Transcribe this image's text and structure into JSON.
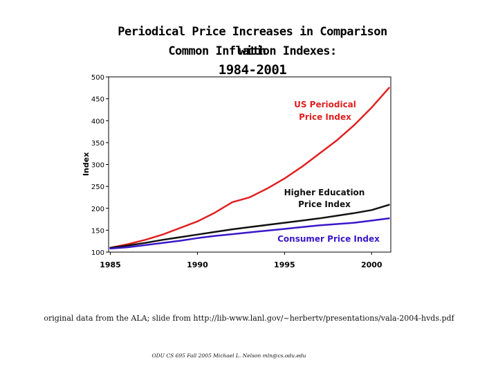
{
  "chart_data": {
    "type": "line",
    "title_lines": [
      "Periodical Price Increases in Comparison with",
      "Common Inflation Indexes:",
      "1984-2001"
    ],
    "xlabel": "",
    "ylabel": "Index",
    "xlim": [
      1984.9,
      2001.1
    ],
    "ylim": [
      100,
      500
    ],
    "yticks": [
      100,
      150,
      200,
      250,
      300,
      350,
      400,
      450,
      500
    ],
    "ytick_labels": [
      "100",
      "150",
      "200",
      "250",
      "300",
      "350",
      "400",
      "450",
      "500"
    ],
    "xticks": [
      1985,
      1990,
      1995,
      2000
    ],
    "xtick_labels": [
      "1985",
      "1990",
      "1995",
      "2000"
    ],
    "grid": false,
    "series": [
      {
        "name": "US Periodical Price Index",
        "label_lines": [
          "US Periodical",
          "Price Index"
        ],
        "color": "#e02020",
        "x": [
          1985,
          1986,
          1987,
          1988,
          1989,
          1990,
          1991,
          1992,
          1993,
          1994,
          1995,
          1996,
          1997,
          1998,
          1999,
          2000,
          2001
        ],
        "values": [
          110,
          118,
          128,
          140,
          155,
          170,
          190,
          214,
          225,
          245,
          268,
          295,
          325,
          355,
          390,
          430,
          475
        ]
      },
      {
        "name": "Higher Education Price Index",
        "label_lines": [
          "Higher Education",
          "Price Index"
        ],
        "color": "#111111",
        "x": [
          1985,
          1986,
          1987,
          1988,
          1989,
          1990,
          1991,
          1992,
          1993,
          1994,
          1995,
          1996,
          1997,
          1998,
          1999,
          2000,
          2001
        ],
        "values": [
          110,
          115,
          121,
          128,
          134,
          140,
          146,
          152,
          157,
          162,
          167,
          172,
          177,
          183,
          189,
          196,
          208
        ]
      },
      {
        "name": "Consumer Price Index",
        "label_lines": [
          "Consumer Price Index"
        ],
        "color": "#3a17c8",
        "x": [
          1985,
          1986,
          1987,
          1988,
          1989,
          1990,
          1991,
          1992,
          1993,
          1994,
          1995,
          1996,
          1997,
          1998,
          1999,
          2000,
          2001
        ],
        "values": [
          108,
          111,
          116,
          121,
          126,
          132,
          137,
          141,
          145,
          149,
          153,
          157,
          161,
          164,
          167,
          172,
          177
        ]
      }
    ]
  },
  "source_note": "original data from the ALA; slide from http://lib-www.lanl.gov/~herbertv/presentations/vala-2004-hvds.pdf",
  "footer": "ODU CS 695 Fall 2005 Michael L. Nelson mln@cs.odu.edu"
}
